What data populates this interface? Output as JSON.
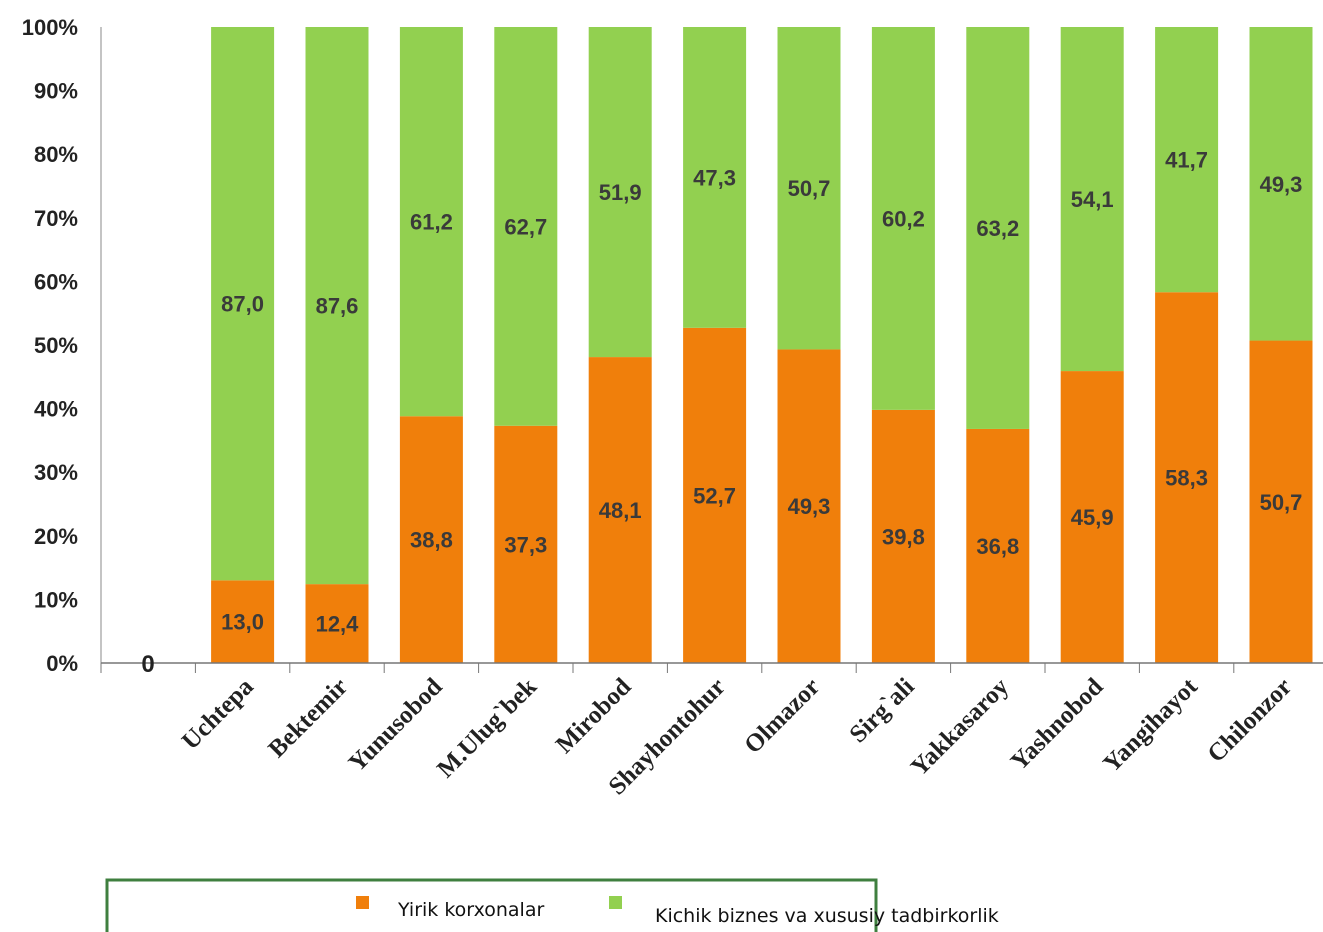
{
  "chart_data": {
    "type": "bar",
    "stacked": true,
    "percent": true,
    "categories": [
      "Uchtepa",
      "Bektemir",
      "Yunusobod",
      "M.Ulug`bek",
      "Mirobod",
      "Shayhontohur",
      "Olmazor",
      "Sirg`ali",
      "Yakkasaroy",
      "Yashnobod",
      "Yangihayot",
      "Chilonzor"
    ],
    "series": [
      {
        "name": "Yirik korxonalar",
        "color": "#F07F0B",
        "values": [
          13.0,
          12.4,
          38.8,
          37.3,
          48.1,
          52.7,
          49.3,
          39.8,
          36.8,
          45.9,
          58.3,
          50.7
        ],
        "labels": [
          "13,0",
          "12,4",
          "38,8",
          "37,3",
          "48,1",
          "52,7",
          "49,3",
          "39,8",
          "36,8",
          "45,9",
          "58,3",
          "50,7"
        ]
      },
      {
        "name": "Kichik biznes va xususiy tadbirkorlik",
        "color": "#92D050",
        "values": [
          87.0,
          87.6,
          61.2,
          62.7,
          51.9,
          47.3,
          50.7,
          60.2,
          63.2,
          54.1,
          41.7,
          49.3
        ],
        "labels": [
          "87,0",
          "87,6",
          "61,2",
          "62,7",
          "51,9",
          "47,3",
          "50,7",
          "60,2",
          "63,2",
          "54,1",
          "41,7",
          "49,3"
        ]
      }
    ],
    "ylim": [
      0,
      100
    ],
    "yticks": [
      "0%",
      "10%",
      "20%",
      "30%",
      "40%",
      "50%",
      "60%",
      "70%",
      "80%",
      "90%",
      "100%"
    ],
    "empty_category_label": "0",
    "legend_position": "bottom",
    "legend_border_color": "#3F7F3F",
    "grid": false
  }
}
